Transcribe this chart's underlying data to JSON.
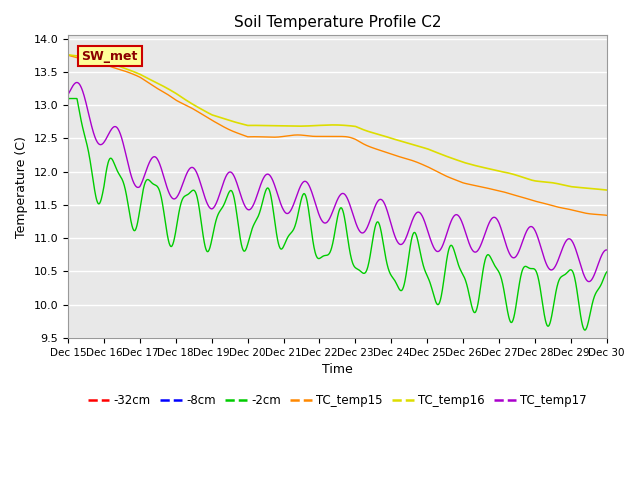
{
  "title": "Soil Temperature Profile C2",
  "xlabel": "Time",
  "ylabel": "Temperature (C)",
  "ylim": [
    9.5,
    14.05
  ],
  "xlim": [
    0,
    15
  ],
  "x_tick_labels": [
    "Dec 15",
    "Dec 16",
    "Dec 17",
    "Dec 18",
    "Dec 19",
    "Dec 20",
    "Dec 21",
    "Dec 22",
    "Dec 23",
    "Dec 24",
    "Dec 25",
    "Dec 26",
    "Dec 27",
    "Dec 28",
    "Dec 29",
    "Dec 30"
  ],
  "bg_color": "#e8e8e8",
  "legend_entries": [
    "-32cm",
    "-8cm",
    "-2cm",
    "TC_temp15",
    "TC_temp16",
    "TC_temp17"
  ],
  "legend_colors": [
    "#ff0000",
    "#0000ff",
    "#00cc00",
    "#ff8800",
    "#dddd00",
    "#aa00cc"
  ],
  "annotation_text": "SW_met",
  "annotation_bg": "#ffff99",
  "annotation_border": "#cc0000",
  "fig_width": 6.4,
  "fig_height": 4.8,
  "dpi": 100
}
